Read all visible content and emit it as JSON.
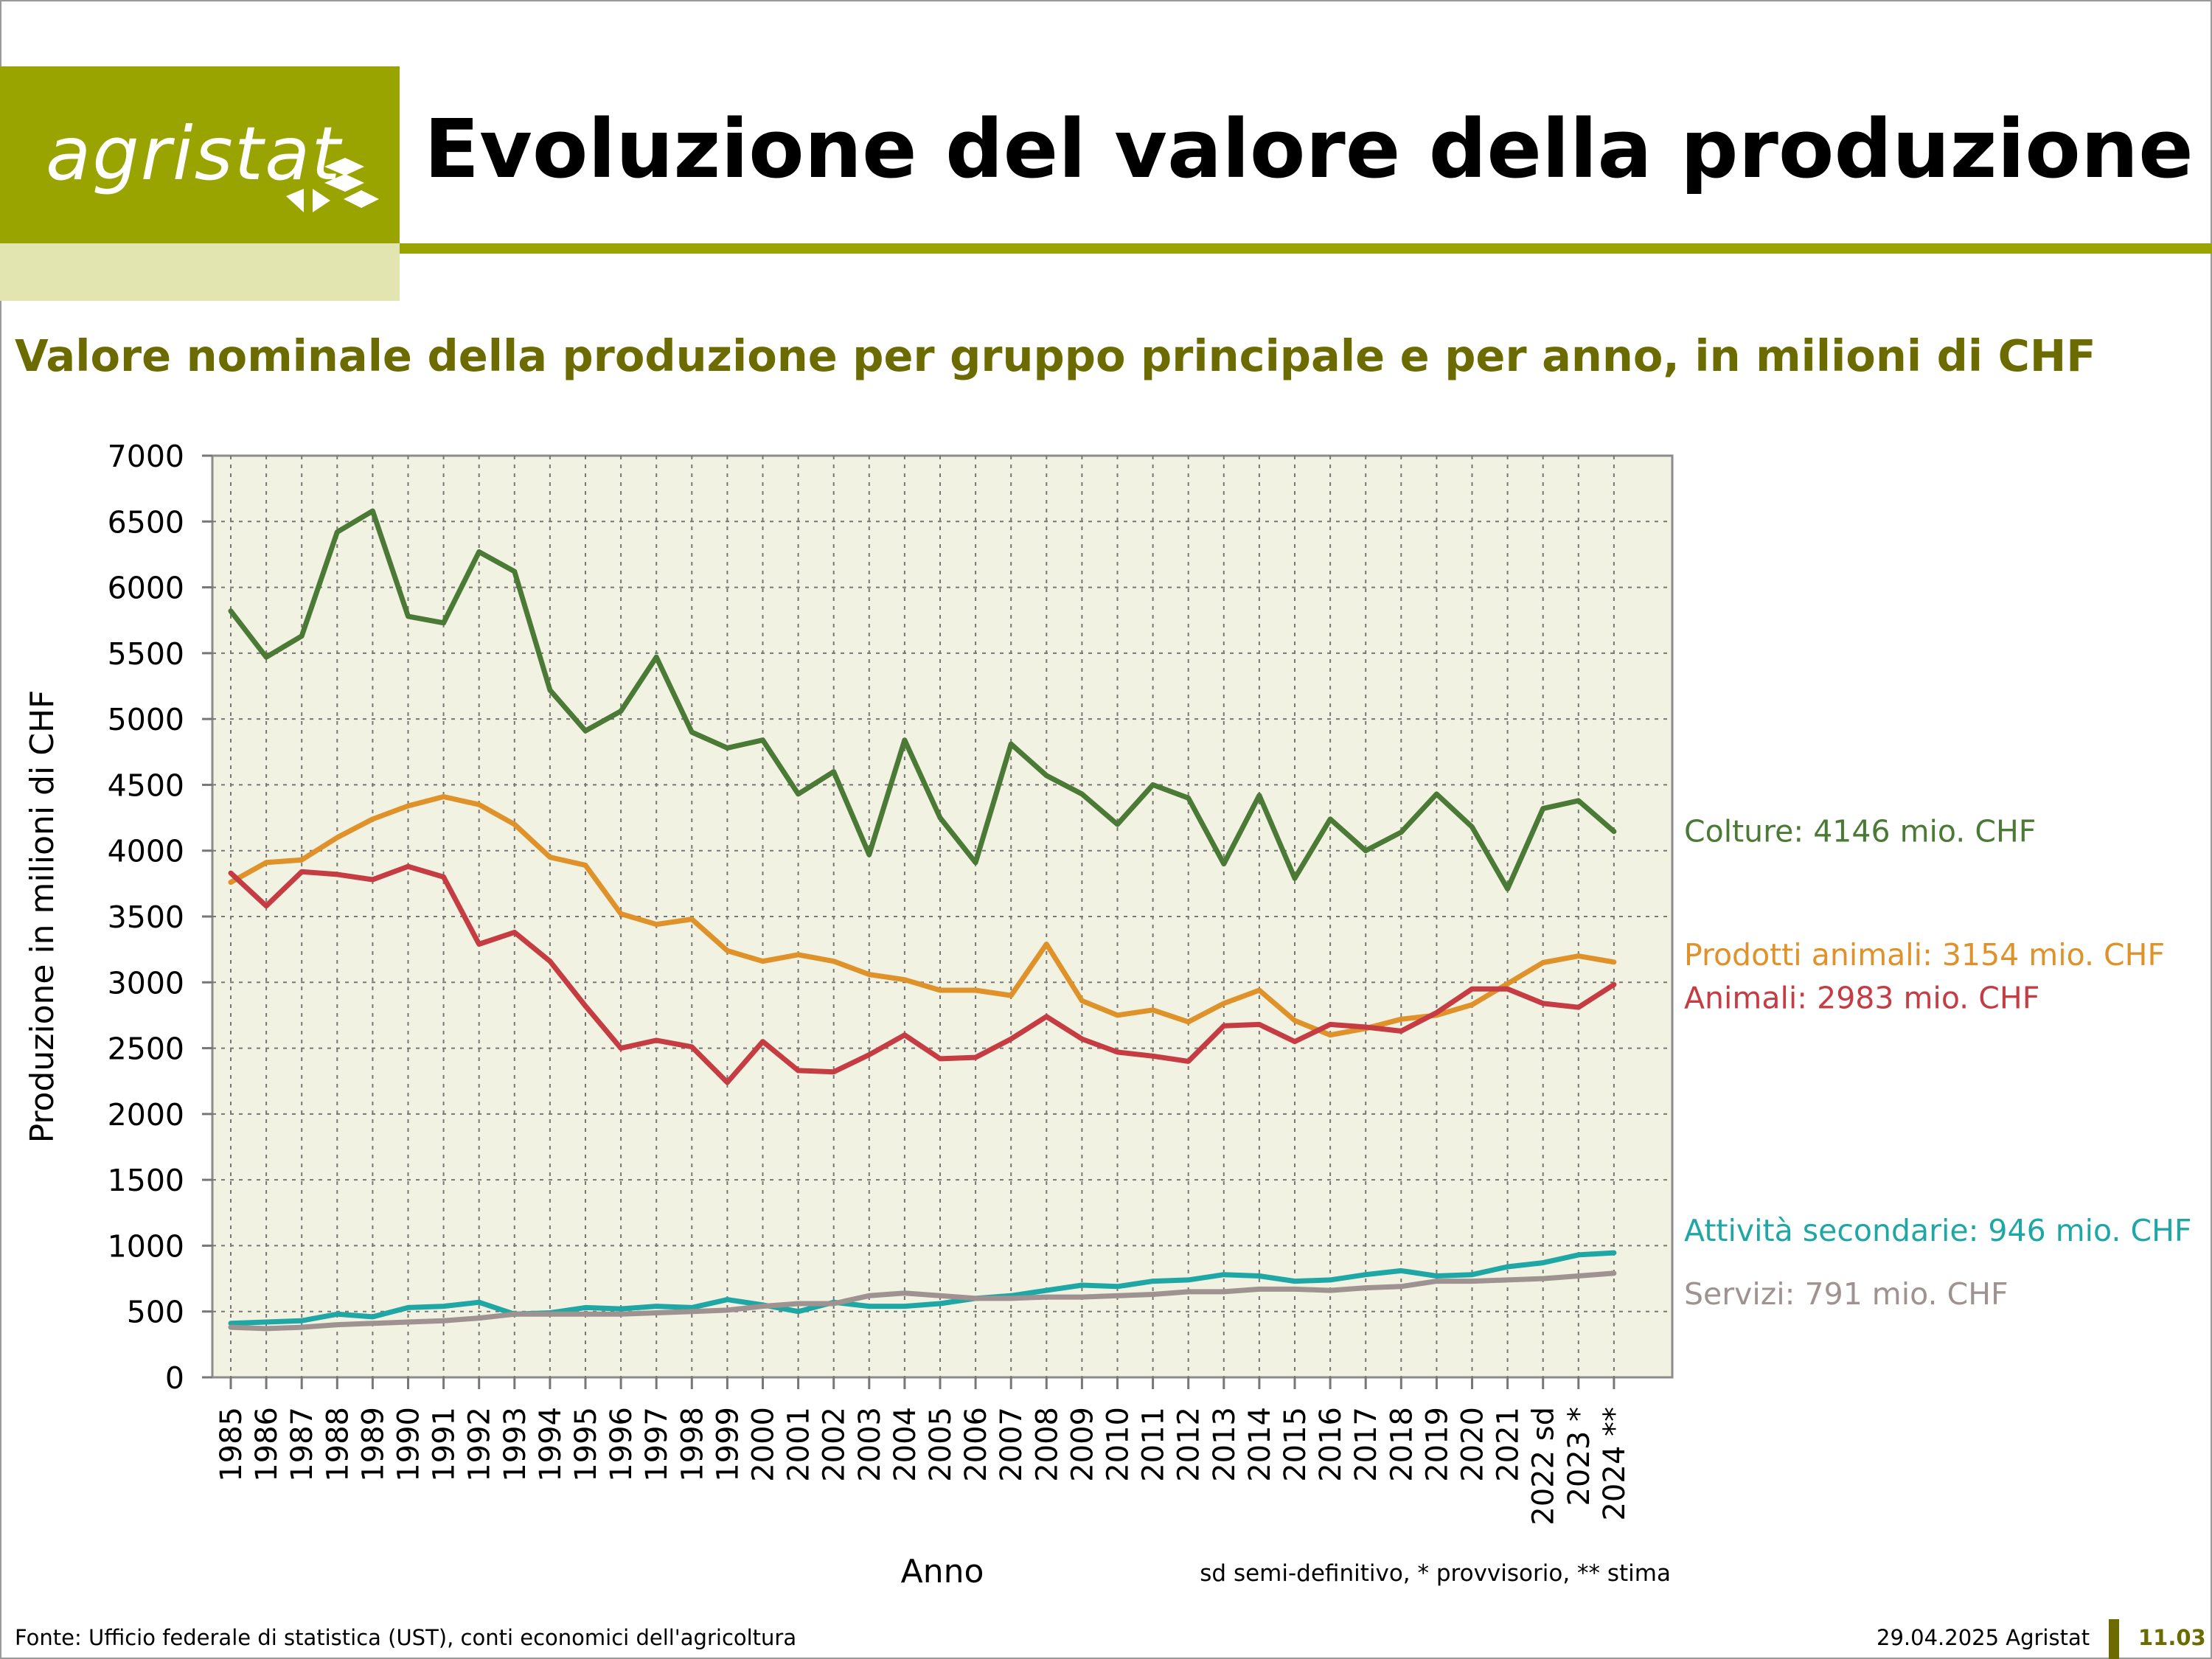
{
  "header": {
    "logo_text": "agristat",
    "title": "Evoluzione del valore della produzione",
    "subtitle": "Valore nominale della produzione per gruppo principale e per anno, in milioni di CHF"
  },
  "colors": {
    "brand": "#9aa400",
    "brand_light": "#e2e5b0",
    "subtitle": "#6b6b00",
    "plot_background": "#f2f2e2"
  },
  "chart_data": {
    "type": "line",
    "xlabel": "Anno",
    "ylabel": "Produzione in milioni di CHF",
    "ylim": [
      0,
      7000
    ],
    "yticks": [
      0,
      500,
      1000,
      1500,
      2000,
      2500,
      3000,
      3500,
      4000,
      4500,
      5000,
      5500,
      6000,
      6500,
      7000
    ],
    "grid": true,
    "legend": "right, at line ends",
    "note": "sd semi-definitivo, * provvisorio, ** stima",
    "x": [
      "1985",
      "1986",
      "1987",
      "1988",
      "1989",
      "1990",
      "1991",
      "1992",
      "1993",
      "1994",
      "1995",
      "1996",
      "1997",
      "1998",
      "1999",
      "2000",
      "2001",
      "2002",
      "2003",
      "2004",
      "2005",
      "2006",
      "2007",
      "2008",
      "2009",
      "2010",
      "2011",
      "2012",
      "2013",
      "2014",
      "2015",
      "2016",
      "2017",
      "2018",
      "2019",
      "2020",
      "2021",
      "2022 sd",
      "2023 *",
      "2024 **"
    ],
    "series": [
      {
        "name": "Colture",
        "label": "Colture: 4146 mio. CHF",
        "color": "#4a7a35",
        "values": [
          5820,
          5470,
          5630,
          6420,
          6580,
          5780,
          5730,
          6270,
          6120,
          5220,
          4910,
          5060,
          5470,
          4900,
          4780,
          4840,
          4430,
          4600,
          3970,
          4840,
          4250,
          3910,
          4810,
          4570,
          4430,
          4200,
          4500,
          4400,
          3900,
          4420,
          3790,
          4240,
          4000,
          4140,
          4430,
          4180,
          3710,
          4320,
          4380,
          4146
        ]
      },
      {
        "name": "Prodotti animali",
        "label": "Prodotti animali: 3154 mio. CHF",
        "color": "#e0922a",
        "values": [
          3760,
          3910,
          3930,
          4100,
          4240,
          4340,
          4410,
          4350,
          4200,
          3950,
          3890,
          3520,
          3440,
          3480,
          3240,
          3160,
          3210,
          3160,
          3060,
          3020,
          2940,
          2940,
          2900,
          3290,
          2860,
          2750,
          2790,
          2700,
          2840,
          2940,
          2710,
          2600,
          2650,
          2720,
          2750,
          2830,
          2990,
          3150,
          3200,
          3154
        ]
      },
      {
        "name": "Animali",
        "label": "Animali: 2983 mio. CHF",
        "color": "#c53c43",
        "values": [
          3830,
          3580,
          3840,
          3820,
          3780,
          3880,
          3800,
          3290,
          3380,
          3160,
          2820,
          2500,
          2560,
          2510,
          2240,
          2550,
          2330,
          2320,
          2450,
          2600,
          2420,
          2430,
          2570,
          2740,
          2570,
          2470,
          2440,
          2400,
          2670,
          2680,
          2550,
          2680,
          2660,
          2630,
          2770,
          2950,
          2950,
          2840,
          2810,
          2983
        ]
      },
      {
        "name": "Attività secondarie",
        "label": "Attività secondarie: 946 mio. CHF",
        "color": "#1fa7a6",
        "values": [
          410,
          420,
          430,
          480,
          460,
          530,
          540,
          570,
          480,
          490,
          530,
          520,
          540,
          530,
          590,
          550,
          500,
          570,
          540,
          540,
          560,
          600,
          620,
          660,
          700,
          690,
          730,
          740,
          780,
          770,
          730,
          740,
          780,
          810,
          770,
          780,
          840,
          870,
          930,
          946
        ]
      },
      {
        "name": "Servizi",
        "label": "Servizi: 791 mio. CHF",
        "color": "#9e9390",
        "values": [
          380,
          370,
          380,
          400,
          410,
          420,
          430,
          450,
          480,
          480,
          480,
          480,
          490,
          500,
          510,
          540,
          560,
          560,
          620,
          640,
          620,
          600,
          600,
          610,
          610,
          620,
          630,
          650,
          650,
          670,
          670,
          660,
          680,
          690,
          730,
          730,
          740,
          750,
          770,
          791
        ]
      }
    ]
  },
  "footer": {
    "source": "Fonte: Ufficio federale di statistica (UST), conti economici dell'agricoltura",
    "date": "29.04.2025 Agristat",
    "page": "11.03"
  }
}
